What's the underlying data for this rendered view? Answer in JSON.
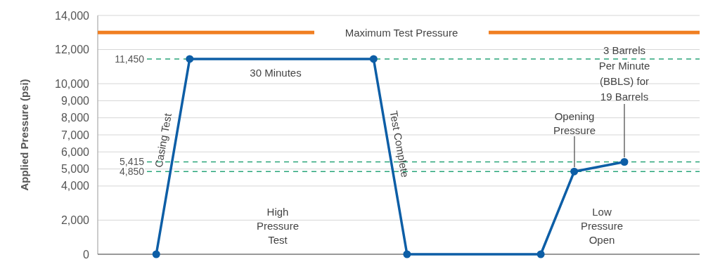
{
  "chart_data": {
    "type": "line",
    "ylabel": "Applied Pressure (psi)",
    "categories": [
      null,
      null,
      null,
      null,
      null,
      null,
      null,
      null,
      null,
      null,
      null,
      null,
      null,
      null,
      null,
      null,
      null,
      null,
      null,
      null,
      null,
      null,
      null,
      null,
      null,
      null,
      null,
      null,
      null,
      null,
      null,
      null,
      null,
      null,
      null,
      null
    ],
    "ylim": [
      0,
      14000
    ],
    "yticks": [
      {
        "value": 0,
        "label": "0"
      },
      {
        "value": 2000,
        "label": "2,000"
      },
      {
        "value": 4000,
        "label": "4,000"
      },
      {
        "value": 5000,
        "label": "5,000"
      },
      {
        "value": 6000,
        "label": "6,000"
      },
      {
        "value": 7000,
        "label": "7,000"
      },
      {
        "value": 8000,
        "label": "8,000"
      },
      {
        "value": 9000,
        "label": "9,000"
      },
      {
        "value": 10000,
        "label": "10,000"
      },
      {
        "value": 12000,
        "label": "12,000"
      },
      {
        "value": 14000,
        "label": "14,000"
      }
    ],
    "tick_labels": "y",
    "grid": "y",
    "marker": "circle",
    "line_style": "solid",
    "series": [
      {
        "color": "#0d5ea6",
        "values": [
          null,
          null,
          null,
          0,
          null,
          11450,
          null,
          null,
          null,
          null,
          null,
          null,
          null,
          null,
          null,
          null,
          11450,
          null,
          0,
          null,
          null,
          null,
          null,
          null,
          null,
          null,
          0,
          null,
          4850,
          null,
          null,
          5415,
          null,
          null,
          null,
          null
        ]
      }
    ],
    "ref_lines": [
      {
        "axis": "y",
        "value": 13000,
        "label": "Maximum Test Pressure",
        "color": "#f07f22",
        "line_style": "solid"
      },
      {
        "axis": "y",
        "value": 11450,
        "label": "11,450",
        "color": "#2aa57a",
        "line_style": "dashed"
      },
      {
        "axis": "y",
        "value": 5415,
        "label": "5,415",
        "color": "#2aa57a",
        "line_style": "dashed"
      },
      {
        "axis": "y",
        "value": 4850,
        "label": "4,850",
        "color": "#2aa57a",
        "line_style": "dashed"
      }
    ],
    "annotations": [
      "Casing Test",
      "30 Minutes",
      "Test Complete",
      "High Pressure Test",
      "Low Pressure Open",
      "Opening Pressure",
      "3 Barrels Per Minute (BBLS) for 19 Barrels"
    ]
  }
}
